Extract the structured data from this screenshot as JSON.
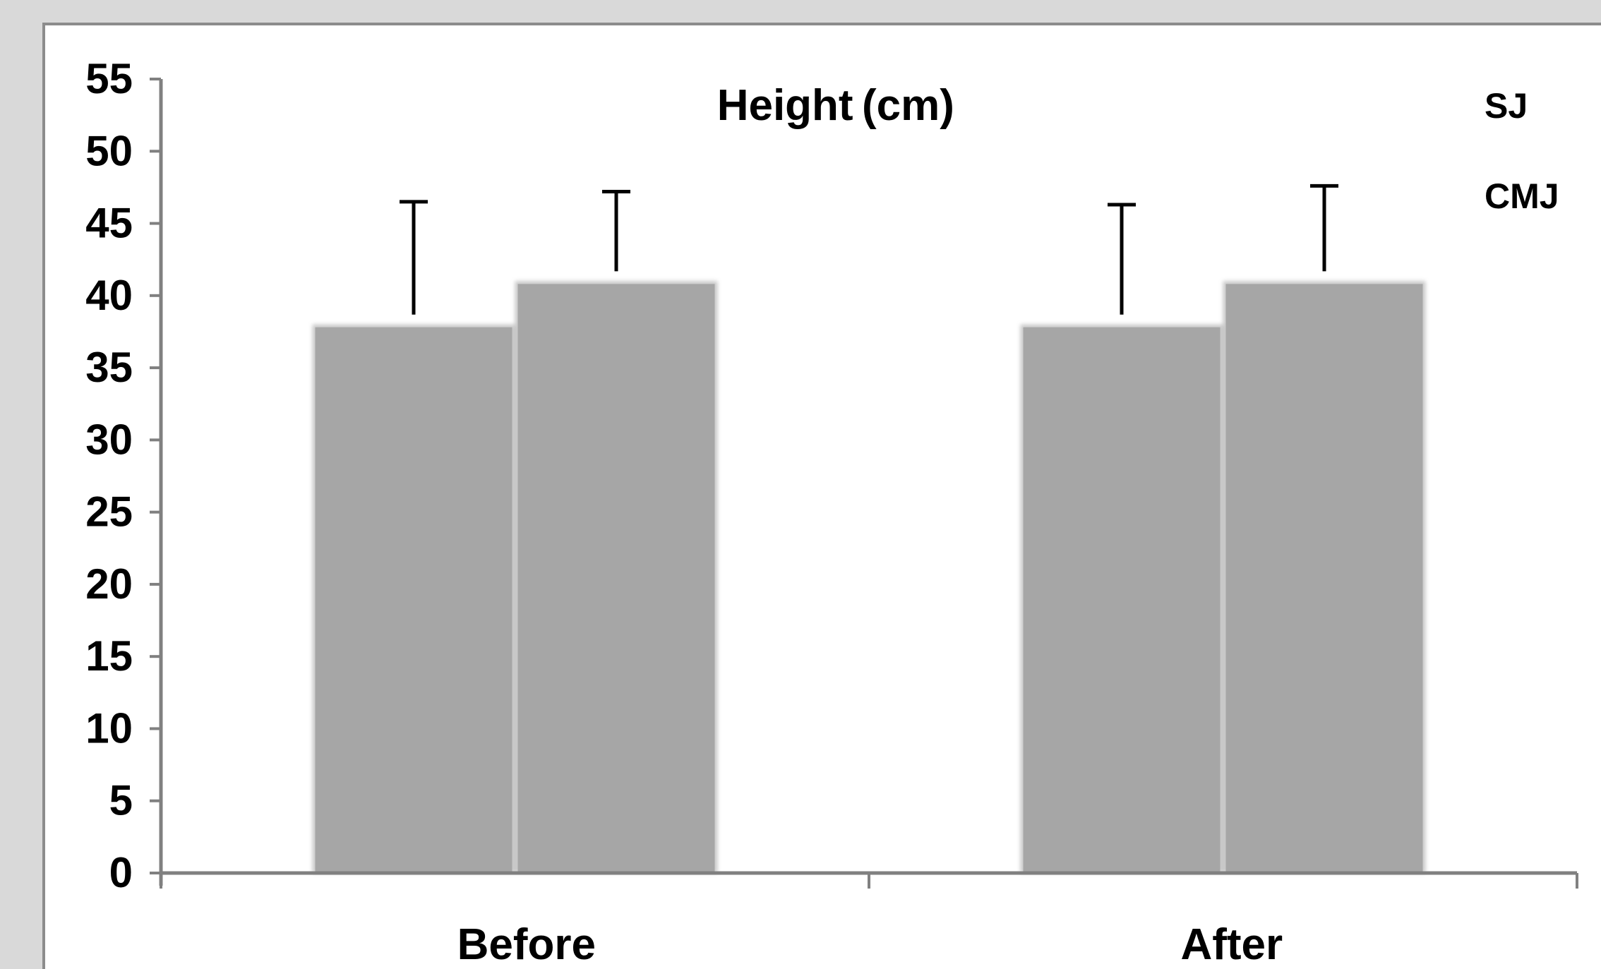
{
  "chart_data": {
    "type": "bar",
    "title": "Height (cm) ",
    "categories": [
      "Before ",
      "After "
    ],
    "series": [
      {
        "name": "SJ ",
        "values": [
          38,
          38
        ],
        "error": [
          8.5,
          8.3
        ]
      },
      {
        "name": "CMJ ",
        "values": [
          41,
          41
        ],
        "error": [
          6.2,
          6.6
        ]
      }
    ],
    "ylim": [
      0,
      55
    ],
    "yticks": [
      0,
      5,
      10,
      15,
      20,
      25,
      30,
      35,
      40,
      45,
      50,
      55
    ],
    "ytick_suffix": " ",
    "bar_color": "#a6a6a6",
    "axis_color": "#808080",
    "legend_position": "top-right",
    "grid": false
  }
}
